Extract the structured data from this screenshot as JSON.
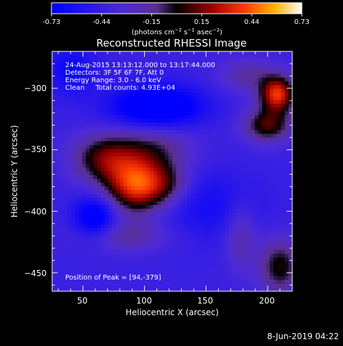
{
  "chart_data": {
    "type": "heatmap",
    "title": "Reconstructed RHESSI Image",
    "xlabel": "Heliocentric X (arcsec)",
    "ylabel": "Heliocentric Y (arcsec)",
    "xlim": [
      25,
      220
    ],
    "ylim": [
      -465,
      -270
    ],
    "xticks": [
      50,
      100,
      150,
      200
    ],
    "yticks": [
      -300,
      -350,
      -400,
      -450
    ],
    "colorbar": {
      "min": -0.73,
      "max": 0.73,
      "ticks": [
        "-0.73",
        "-0.44",
        "-0.15",
        "0.15",
        "0.44",
        "0.73"
      ],
      "unit_label": "(photons cm^-2 s^-1 asec^-2)"
    },
    "annotations": {
      "time": "24-Aug-2015 13:13:12.000 to 13:17:44.000",
      "detectors": "Detectors: 3F 5F 6F 7F, Att 0",
      "energy": "Energy Range: 3.0 - 6.0 keV",
      "clean": "Clean     Total counts: 4.93E+04",
      "peak": "Position of Peak = [94,-379]"
    },
    "peak_position_arcsec": [
      94,
      -379
    ],
    "image_blobs": [
      {
        "x": 94,
        "y": -379,
        "sx": 18,
        "sy": 16,
        "amp": 0.8
      },
      {
        "x": 66,
        "y": -357,
        "sx": 18,
        "sy": 14,
        "amp": 0.45
      },
      {
        "x": 106,
        "y": -348,
        "sx": 24,
        "sy": 14,
        "amp": 0.3
      },
      {
        "x": 120,
        "y": -378,
        "sx": 14,
        "sy": 12,
        "amp": 0.25
      },
      {
        "x": 85,
        "y": -420,
        "sx": 26,
        "sy": 9,
        "amp": 0.25
      },
      {
        "x": 208,
        "y": -305,
        "sx": 10,
        "sy": 10,
        "amp": 0.75
      },
      {
        "x": 200,
        "y": -330,
        "sx": 14,
        "sy": 10,
        "amp": 0.5
      },
      {
        "x": 210,
        "y": -445,
        "sx": 12,
        "sy": 16,
        "amp": 0.45
      },
      {
        "x": 178,
        "y": -420,
        "sx": 9,
        "sy": 20,
        "amp": 0.25
      },
      {
        "x": 185,
        "y": -290,
        "sx": 18,
        "sy": 10,
        "amp": 0.25
      },
      {
        "x": 110,
        "y": -315,
        "sx": 26,
        "sy": 12,
        "amp": -0.55
      },
      {
        "x": 60,
        "y": -405,
        "sx": 12,
        "sy": 12,
        "amp": -0.45
      },
      {
        "x": 40,
        "y": -285,
        "sx": 14,
        "sy": 14,
        "amp": -0.25
      },
      {
        "x": 150,
        "y": -395,
        "sx": 30,
        "sy": 20,
        "amp": -0.2
      }
    ],
    "background_level": -0.42
  },
  "footer": {
    "datetime": "8-Jun-2019 04:22"
  }
}
